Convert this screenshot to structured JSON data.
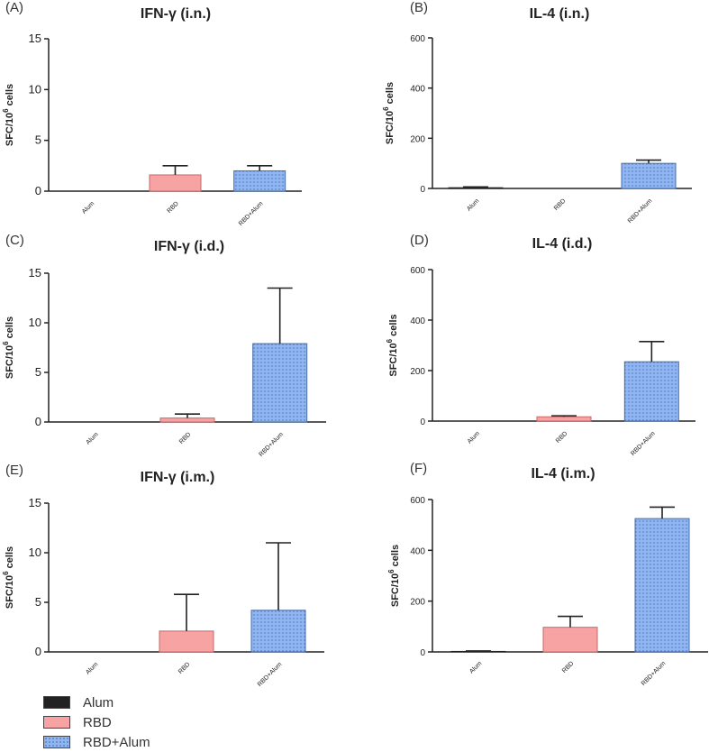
{
  "colors": {
    "Alum": "#222222",
    "RBD": "#f8a3a3",
    "RBD+Alum": "#8fb5f2"
  },
  "legend": {
    "items": [
      {
        "label": "Alum",
        "key": "Alum"
      },
      {
        "label": "RBD",
        "key": "RBD"
      },
      {
        "label": "RBD+Alum",
        "key": "RBD+Alum"
      }
    ]
  },
  "chart_data": [
    {
      "panel": "(A)",
      "title": "IFN-γ (i.n.)",
      "type": "bar",
      "ylabel_main": "SFC/10",
      "ylabel_sup": "6",
      "ylabel_tail": " cells",
      "categories": [
        "Alum",
        "RBD",
        "RBD+Alum"
      ],
      "values": [
        0,
        1.6,
        2.0
      ],
      "errors": [
        0,
        0.9,
        0.5
      ],
      "ylim": [
        0,
        15
      ],
      "yticks": [
        0,
        5,
        10,
        15
      ]
    },
    {
      "panel": "(B)",
      "title": "IL-4 (i.n.)",
      "type": "bar",
      "ylabel_main": "SFC/10",
      "ylabel_sup": "6",
      "ylabel_tail": " cells",
      "categories": [
        "Alum",
        "RBD",
        "RBD+Alum"
      ],
      "values": [
        3,
        0,
        100
      ],
      "errors": [
        3,
        0,
        13
      ],
      "ylim": [
        0,
        600
      ],
      "yticks": [
        0,
        200,
        400,
        600
      ]
    },
    {
      "panel": "(C)",
      "title": "IFN-γ (i.d.)",
      "type": "bar",
      "ylabel_main": "SFC/10",
      "ylabel_sup": "6",
      "ylabel_tail": " cells",
      "categories": [
        "Alum",
        "RBD",
        "RBD+Alum"
      ],
      "values": [
        0,
        0.4,
        7.9
      ],
      "errors": [
        0,
        0.4,
        5.6
      ],
      "ylim": [
        0,
        15
      ],
      "yticks": [
        0,
        5,
        10,
        15
      ]
    },
    {
      "panel": "(D)",
      "title": "IL-4 (i.d.)",
      "type": "bar",
      "ylabel_main": "SFC/10",
      "ylabel_sup": "6",
      "ylabel_tail": " cells",
      "categories": [
        "Alum",
        "RBD",
        "RBD+Alum"
      ],
      "values": [
        0,
        17,
        235
      ],
      "errors": [
        0,
        4,
        80
      ],
      "ylim": [
        0,
        600
      ],
      "yticks": [
        0,
        200,
        400,
        600
      ]
    },
    {
      "panel": "(E)",
      "title": "IFN-γ (i.m.)",
      "type": "bar",
      "ylabel_main": "SFC/10",
      "ylabel_sup": "6",
      "ylabel_tail": " cells",
      "categories": [
        "Alum",
        "RBD",
        "RBD+Alum"
      ],
      "values": [
        0,
        2.1,
        4.2
      ],
      "errors": [
        0,
        3.7,
        6.8
      ],
      "ylim": [
        0,
        15
      ],
      "yticks": [
        0,
        5,
        10,
        15
      ]
    },
    {
      "panel": "(F)",
      "title": "IL-4 (i.m.)",
      "type": "bar",
      "ylabel_main": "SFC/10",
      "ylabel_sup": "6",
      "ylabel_tail": " cells",
      "categories": [
        "Alum",
        "RBD",
        "RBD+Alum"
      ],
      "values": [
        2,
        97,
        525
      ],
      "errors": [
        2,
        43,
        45
      ],
      "ylim": [
        0,
        600
      ],
      "yticks": [
        0,
        200,
        400,
        600
      ]
    }
  ]
}
